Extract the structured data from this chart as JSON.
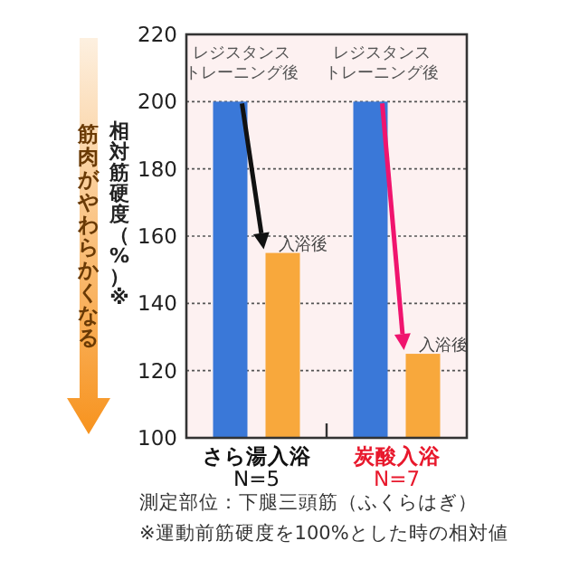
{
  "chart_data": {
    "type": "bar",
    "categories": [
      "さら湯入浴 N=5",
      "炭酸入浴 N=7"
    ],
    "series": [
      {
        "name": "レジスタンストレーニング後",
        "color": "#3a78d8",
        "values": [
          200,
          200
        ]
      },
      {
        "name": "入浴後",
        "color": "#f8a83c",
        "values": [
          155,
          125
        ]
      }
    ],
    "ylabel": "相対筋硬度（%）※",
    "ylim": [
      100,
      220
    ],
    "yticks": [
      100,
      120,
      140,
      160,
      180,
      200,
      220
    ],
    "grid": "y",
    "annotations": [
      "筋肉がやわらかくなる",
      "測定部位：下腿三頭筋（ふくらはぎ）",
      "※運動前筋硬度を100%とした時の相対値"
    ]
  }
}
